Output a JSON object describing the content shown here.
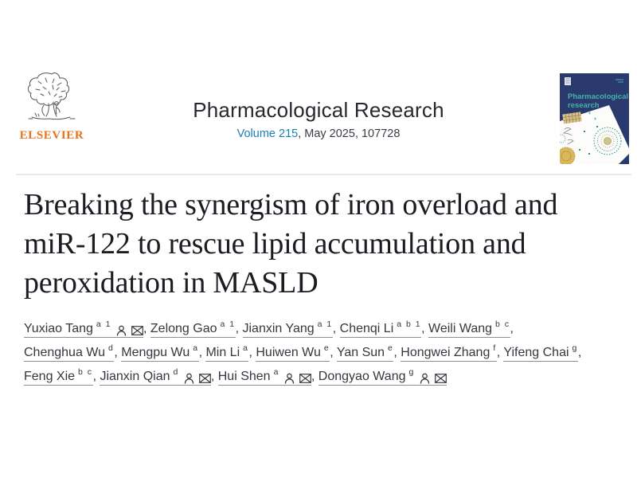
{
  "header": {
    "publisher": "ELSEVIER",
    "journal_title": "Pharmacological Research",
    "volume_link": "Volume 215",
    "issue_info": ", May 2025, 107728",
    "cover": {
      "title_lines": [
        "Pharmacological",
        "research"
      ]
    }
  },
  "article": {
    "title": "Breaking the synergism of iron overload and miR-122 to rescue lipid accumulation and peroxidation in MASLD",
    "title_lines": [
      "Breaking the synergism of iron overload and",
      "miR-122 to rescue lipid accumulation and",
      "peroxidation in MASLD"
    ]
  },
  "authors": {
    "separator": ", ",
    "rows": [
      [
        {
          "name": "Yuxiao Tang",
          "sup": "a 1",
          "person": true,
          "email": true
        },
        {
          "name": "Zelong Gao",
          "sup": "a 1"
        },
        {
          "name": "Jianxin Yang",
          "sup": "a 1"
        },
        {
          "name": "Chenqi Li",
          "sup": "a b 1"
        },
        {
          "name": "Weili Wang",
          "sup": "b c"
        }
      ],
      [
        {
          "name": "Chenghua Wu",
          "sup": "d"
        },
        {
          "name": "Mengpu Wu",
          "sup": "a"
        },
        {
          "name": "Min Li",
          "sup": "a"
        },
        {
          "name": "Huiwen Wu",
          "sup": "e"
        },
        {
          "name": "Yan Sun",
          "sup": "e"
        },
        {
          "name": "Hongwei Zhang",
          "sup": "f"
        },
        {
          "name": "Yifeng Chai",
          "sup": "g"
        }
      ],
      [
        {
          "name": "Feng Xie",
          "sup": "b c"
        },
        {
          "name": "Jianxin Qian",
          "sup": "d",
          "person": true,
          "email": true
        },
        {
          "name": "Hui Shen",
          "sup": "a",
          "person": true,
          "email": true
        },
        {
          "name": "Dongyao Wang",
          "sup": "g",
          "person": true,
          "email": true
        }
      ]
    ]
  },
  "icons": {
    "person": "person-icon",
    "email": "email-icon"
  },
  "colors": {
    "link_blue": "#1a80b5",
    "elsevier_orange": "#e9711c",
    "cover_navy": "#2b3a6e",
    "cover_teal": "#45b0a8",
    "author_underline": "#8e8e94",
    "divider": "#e9e9eb",
    "title_text": "#1c1c22"
  }
}
